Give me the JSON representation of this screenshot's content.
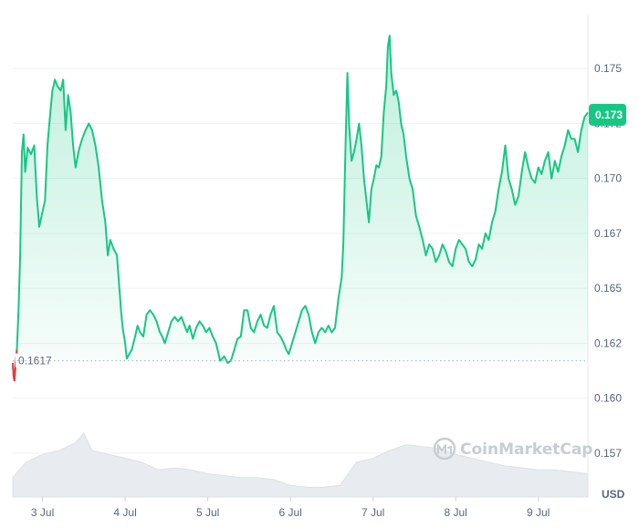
{
  "chart_data": {
    "type": "line",
    "currency_label": "USD",
    "watermark": "CoinMarketCap",
    "ylim": [
      0.1555,
      0.1775
    ],
    "y_ticks": [
      "0.175",
      "0.172",
      "0.170",
      "0.167",
      "0.165",
      "0.162",
      "0.160",
      "0.157"
    ],
    "y_tick_values": [
      0.175,
      0.1725,
      0.17,
      0.1675,
      0.165,
      0.1625,
      0.16,
      0.1575
    ],
    "x_ticks": [
      "3 Jul",
      "4 Jul",
      "5 Jul",
      "6 Jul",
      "7 Jul",
      "8 Jul",
      "9 Jul"
    ],
    "x_tick_values": [
      3,
      4,
      5,
      6,
      7,
      8,
      9
    ],
    "xlim": [
      2.64,
      9.6
    ],
    "reference_price": {
      "value": 0.1617,
      "label": "0.1617"
    },
    "current_price": {
      "value": 0.1729,
      "label": "0.173"
    },
    "series": [
      {
        "points": [
          [
            2.64,
            0.1616
          ],
          [
            2.65,
            0.161
          ],
          [
            2.66,
            0.1608
          ],
          [
            2.67,
            0.1613
          ],
          [
            2.69,
            0.1622
          ],
          [
            2.71,
            0.164
          ],
          [
            2.73,
            0.1665
          ],
          [
            2.75,
            0.1712
          ],
          [
            2.77,
            0.172
          ],
          [
            2.79,
            0.1703
          ],
          [
            2.82,
            0.1714
          ],
          [
            2.86,
            0.1711
          ],
          [
            2.9,
            0.1715
          ],
          [
            2.93,
            0.1692
          ],
          [
            2.96,
            0.1678
          ],
          [
            3.0,
            0.1685
          ],
          [
            3.03,
            0.169
          ],
          [
            3.06,
            0.1715
          ],
          [
            3.09,
            0.1728
          ],
          [
            3.12,
            0.174
          ],
          [
            3.15,
            0.1745
          ],
          [
            3.18,
            0.1742
          ],
          [
            3.22,
            0.174
          ],
          [
            3.25,
            0.1745
          ],
          [
            3.28,
            0.1722
          ],
          [
            3.31,
            0.1738
          ],
          [
            3.34,
            0.173
          ],
          [
            3.37,
            0.1715
          ],
          [
            3.4,
            0.1705
          ],
          [
            3.44,
            0.1713
          ],
          [
            3.48,
            0.1718
          ],
          [
            3.52,
            0.1722
          ],
          [
            3.56,
            0.1725
          ],
          [
            3.6,
            0.1722
          ],
          [
            3.64,
            0.1715
          ],
          [
            3.68,
            0.1705
          ],
          [
            3.72,
            0.169
          ],
          [
            3.76,
            0.168
          ],
          [
            3.79,
            0.1665
          ],
          [
            3.82,
            0.1672
          ],
          [
            3.86,
            0.1668
          ],
          [
            3.9,
            0.1665
          ],
          [
            3.92,
            0.1655
          ],
          [
            3.95,
            0.164
          ],
          [
            3.97,
            0.1632
          ],
          [
            4.0,
            0.1625
          ],
          [
            4.02,
            0.1618
          ],
          [
            4.05,
            0.162
          ],
          [
            4.08,
            0.1622
          ],
          [
            4.12,
            0.1628
          ],
          [
            4.15,
            0.1633
          ],
          [
            4.18,
            0.163
          ],
          [
            4.22,
            0.1628
          ],
          [
            4.26,
            0.1638
          ],
          [
            4.3,
            0.164
          ],
          [
            4.34,
            0.1638
          ],
          [
            4.38,
            0.1635
          ],
          [
            4.42,
            0.163
          ],
          [
            4.45,
            0.1628
          ],
          [
            4.48,
            0.1625
          ],
          [
            4.52,
            0.163
          ],
          [
            4.56,
            0.1635
          ],
          [
            4.6,
            0.1637
          ],
          [
            4.64,
            0.1635
          ],
          [
            4.68,
            0.1637
          ],
          [
            4.72,
            0.1633
          ],
          [
            4.75,
            0.163
          ],
          [
            4.78,
            0.1633
          ],
          [
            4.82,
            0.1627
          ],
          [
            4.86,
            0.1632
          ],
          [
            4.9,
            0.1635
          ],
          [
            4.94,
            0.1633
          ],
          [
            4.98,
            0.163
          ],
          [
            5.02,
            0.1632
          ],
          [
            5.06,
            0.1628
          ],
          [
            5.1,
            0.1625
          ],
          [
            5.15,
            0.1617
          ],
          [
            5.2,
            0.1619
          ],
          [
            5.24,
            0.1616
          ],
          [
            5.28,
            0.1617
          ],
          [
            5.32,
            0.1622
          ],
          [
            5.36,
            0.1627
          ],
          [
            5.4,
            0.1628
          ],
          [
            5.44,
            0.164
          ],
          [
            5.48,
            0.164
          ],
          [
            5.52,
            0.1632
          ],
          [
            5.56,
            0.163
          ],
          [
            5.6,
            0.1635
          ],
          [
            5.64,
            0.1638
          ],
          [
            5.68,
            0.1633
          ],
          [
            5.72,
            0.1632
          ],
          [
            5.76,
            0.1638
          ],
          [
            5.8,
            0.1642
          ],
          [
            5.84,
            0.163
          ],
          [
            5.88,
            0.1628
          ],
          [
            5.92,
            0.1625
          ],
          [
            5.95,
            0.1622
          ],
          [
            5.98,
            0.162
          ],
          [
            6.02,
            0.1625
          ],
          [
            6.06,
            0.163
          ],
          [
            6.1,
            0.1635
          ],
          [
            6.14,
            0.164
          ],
          [
            6.18,
            0.1642
          ],
          [
            6.22,
            0.1638
          ],
          [
            6.26,
            0.163
          ],
          [
            6.3,
            0.1625
          ],
          [
            6.34,
            0.163
          ],
          [
            6.38,
            0.1632
          ],
          [
            6.42,
            0.163
          ],
          [
            6.46,
            0.1633
          ],
          [
            6.5,
            0.163
          ],
          [
            6.54,
            0.1632
          ],
          [
            6.58,
            0.1645
          ],
          [
            6.62,
            0.1655
          ],
          [
            6.64,
            0.167
          ],
          [
            6.67,
            0.172
          ],
          [
            6.69,
            0.1748
          ],
          [
            6.71,
            0.1725
          ],
          [
            6.74,
            0.1708
          ],
          [
            6.77,
            0.1712
          ],
          [
            6.8,
            0.1718
          ],
          [
            6.83,
            0.1725
          ],
          [
            6.86,
            0.1715
          ],
          [
            6.89,
            0.17
          ],
          [
            6.92,
            0.169
          ],
          [
            6.95,
            0.168
          ],
          [
            6.98,
            0.1695
          ],
          [
            7.01,
            0.17
          ],
          [
            7.04,
            0.1706
          ],
          [
            7.07,
            0.1705
          ],
          [
            7.1,
            0.171
          ],
          [
            7.13,
            0.173
          ],
          [
            7.16,
            0.1742
          ],
          [
            7.18,
            0.176
          ],
          [
            7.2,
            0.1765
          ],
          [
            7.22,
            0.1748
          ],
          [
            7.25,
            0.1738
          ],
          [
            7.28,
            0.174
          ],
          [
            7.31,
            0.1735
          ],
          [
            7.34,
            0.1725
          ],
          [
            7.37,
            0.172
          ],
          [
            7.4,
            0.171
          ],
          [
            7.44,
            0.17
          ],
          [
            7.48,
            0.1695
          ],
          [
            7.52,
            0.1683
          ],
          [
            7.56,
            0.1678
          ],
          [
            7.6,
            0.1672
          ],
          [
            7.64,
            0.1665
          ],
          [
            7.68,
            0.167
          ],
          [
            7.72,
            0.1668
          ],
          [
            7.76,
            0.1662
          ],
          [
            7.8,
            0.1665
          ],
          [
            7.84,
            0.167
          ],
          [
            7.88,
            0.1667
          ],
          [
            7.92,
            0.1662
          ],
          [
            7.96,
            0.166
          ],
          [
            8.0,
            0.1668
          ],
          [
            8.04,
            0.1672
          ],
          [
            8.08,
            0.167
          ],
          [
            8.12,
            0.1668
          ],
          [
            8.16,
            0.1662
          ],
          [
            8.2,
            0.166
          ],
          [
            8.24,
            0.1663
          ],
          [
            8.28,
            0.167
          ],
          [
            8.32,
            0.1668
          ],
          [
            8.36,
            0.1675
          ],
          [
            8.4,
            0.1672
          ],
          [
            8.44,
            0.168
          ],
          [
            8.48,
            0.1685
          ],
          [
            8.52,
            0.1695
          ],
          [
            8.56,
            0.1703
          ],
          [
            8.6,
            0.1715
          ],
          [
            8.64,
            0.17
          ],
          [
            8.68,
            0.1695
          ],
          [
            8.72,
            0.1688
          ],
          [
            8.76,
            0.1692
          ],
          [
            8.8,
            0.1703
          ],
          [
            8.84,
            0.1712
          ],
          [
            8.88,
            0.1705
          ],
          [
            8.92,
            0.17
          ],
          [
            8.96,
            0.1698
          ],
          [
            9.0,
            0.1705
          ],
          [
            9.04,
            0.1702
          ],
          [
            9.08,
            0.1708
          ],
          [
            9.12,
            0.1712
          ],
          [
            9.16,
            0.17
          ],
          [
            9.2,
            0.1708
          ],
          [
            9.24,
            0.1703
          ],
          [
            9.28,
            0.171
          ],
          [
            9.32,
            0.1715
          ],
          [
            9.36,
            0.1722
          ],
          [
            9.4,
            0.1718
          ],
          [
            9.44,
            0.1718
          ],
          [
            9.48,
            0.1712
          ],
          [
            9.52,
            0.1722
          ],
          [
            9.56,
            0.1728
          ],
          [
            9.6,
            0.173
          ]
        ]
      }
    ],
    "volume": [
      [
        2.64,
        10
      ],
      [
        2.8,
        18
      ],
      [
        3.0,
        22
      ],
      [
        3.2,
        24
      ],
      [
        3.4,
        28
      ],
      [
        3.5,
        33
      ],
      [
        3.6,
        24
      ],
      [
        3.8,
        22
      ],
      [
        4.0,
        20
      ],
      [
        4.2,
        18
      ],
      [
        4.4,
        14
      ],
      [
        4.6,
        15
      ],
      [
        4.8,
        14
      ],
      [
        5.0,
        12
      ],
      [
        5.2,
        11
      ],
      [
        5.4,
        10
      ],
      [
        5.6,
        10
      ],
      [
        5.8,
        9
      ],
      [
        6.0,
        6
      ],
      [
        6.2,
        5
      ],
      [
        6.4,
        5
      ],
      [
        6.6,
        6
      ],
      [
        6.8,
        18
      ],
      [
        7.0,
        20
      ],
      [
        7.2,
        24
      ],
      [
        7.4,
        27
      ],
      [
        7.6,
        26
      ],
      [
        7.8,
        25
      ],
      [
        8.0,
        22
      ],
      [
        8.2,
        20
      ],
      [
        8.4,
        18
      ],
      [
        8.6,
        16
      ],
      [
        8.8,
        15
      ],
      [
        9.0,
        14
      ],
      [
        9.2,
        14
      ],
      [
        9.4,
        13
      ],
      [
        9.6,
        12
      ]
    ]
  }
}
